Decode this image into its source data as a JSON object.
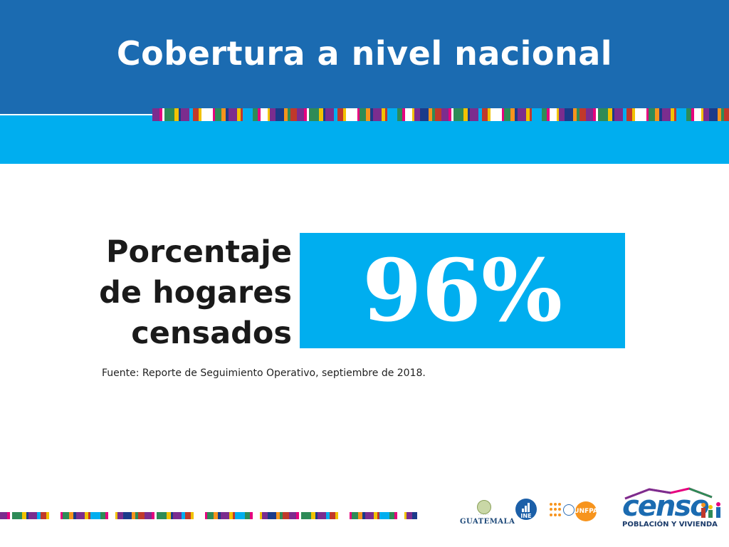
{
  "slide": {
    "title": "Cobertura a nivel nacional"
  },
  "metric": {
    "label_lines": [
      "Porcentaje",
      "de hogares",
      "censados"
    ],
    "value": "96%",
    "value_percent": 96
  },
  "source": {
    "text": "Fuente: Reporte de Seguimiento Operativo, septiembre de 2018."
  },
  "footer": {
    "logos": [
      {
        "name": "guatemala-government-logo",
        "text": "GUATEMALA"
      },
      {
        "name": "ine-logo",
        "text": "INE"
      },
      {
        "name": "unfpa-logo",
        "text": "UNFPA"
      },
      {
        "name": "censo-logo",
        "text": "censo",
        "subtitle": "POBLACIÓN Y VIVIENDA"
      }
    ]
  },
  "colors": {
    "header_blue": "#1b6bb1",
    "band_cyan": "#00aeef",
    "stripe_palette": [
      "#7b2d8e",
      "#e6007e",
      "#2e8b57",
      "#f2c200",
      "#00aeef",
      "#1b3b8a",
      "#c0392b",
      "#ffffff",
      "#f7941d"
    ]
  }
}
